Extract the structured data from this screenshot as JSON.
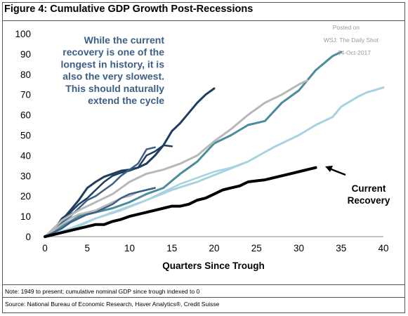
{
  "figure": {
    "title": "Figure 4: Cumulative GDP Growth Post-Recessions",
    "note": "Note: 1949 to present; cumulative nominal GDP since trough indexed to 0",
    "source": "Source: National Bureau of Economic Research, Haver Analytics®, Credit Suisse",
    "watermark": [
      "Posted on",
      "WSJ: The Daily Shot",
      "24-Oct-2017"
    ],
    "annotation_lines": [
      "While the current",
      "recovery is one of the",
      "longest in history, it is",
      "also the very slowest.",
      "This should naturally",
      "extend the cycle"
    ],
    "current_label_lines": [
      "Current",
      "Recovery"
    ]
  },
  "colors": {
    "navy": "#1f3d5e",
    "slate": "#3c5f86",
    "teal": "#4b8c9a",
    "light_blue": "#a8d2df",
    "gray": "#b8b8b8",
    "current": "#000000",
    "annotation": "#3c5f86"
  },
  "chart_data": {
    "type": "line",
    "title": "Figure 4: Cumulative GDP Growth Post-Recessions",
    "xlabel": "Quarters Since Trough",
    "ylabel": "",
    "xlim": [
      0,
      40
    ],
    "ylim": [
      0,
      100
    ],
    "xticks": [
      "0",
      "5",
      "10",
      "15",
      "20",
      "25",
      "30",
      "35",
      "40"
    ],
    "yticks": [
      "0",
      "10",
      "20",
      "30",
      "40",
      "50",
      "60",
      "70",
      "80",
      "90",
      "100"
    ],
    "grid": false,
    "legend": "none",
    "series": [
      {
        "color_key": "navy",
        "width": 3,
        "x": [
          0,
          1,
          2,
          3,
          4,
          5,
          6,
          7,
          8,
          9,
          10,
          11,
          12,
          13,
          14,
          15,
          16,
          17,
          18,
          19,
          20
        ],
        "y": [
          0,
          3,
          8,
          13,
          18,
          24,
          27,
          29.5,
          31,
          32.5,
          33,
          34,
          36,
          40,
          45,
          52,
          56,
          61,
          66,
          70,
          73
        ]
      },
      {
        "color_key": "navy",
        "width": 2.5,
        "x": [
          0,
          1,
          2,
          3,
          4,
          5,
          6,
          7,
          8,
          9,
          10,
          11,
          12,
          13,
          14,
          15
        ],
        "y": [
          0,
          3,
          9,
          12,
          16,
          19,
          23,
          27,
          30,
          31.5,
          32.5,
          34,
          40,
          42,
          45,
          44.5
        ]
      },
      {
        "color_key": "slate",
        "width": 2.5,
        "x": [
          0,
          1,
          2,
          3,
          4,
          5,
          6,
          7,
          8,
          9,
          10,
          11,
          12,
          13
        ],
        "y": [
          0,
          3,
          7,
          10,
          14,
          18,
          20,
          23,
          26,
          30,
          33,
          36,
          43,
          44
        ]
      },
      {
        "color_key": "slate",
        "width": 2.5,
        "x": [
          0,
          1,
          2,
          3,
          4
        ],
        "y": [
          0,
          4,
          8,
          11,
          13
        ]
      },
      {
        "color_key": "teal",
        "width": 3,
        "x": [
          0,
          2,
          4,
          6,
          8,
          10,
          12,
          14,
          16,
          18,
          20,
          22,
          24,
          26,
          28,
          30,
          32,
          34,
          35
        ],
        "y": [
          0,
          5,
          10,
          12,
          14,
          17,
          21,
          24,
          31,
          37,
          46,
          50,
          55,
          57,
          66,
          72,
          82,
          89,
          91
        ]
      },
      {
        "color_key": "gray",
        "width": 3,
        "x": [
          0,
          2,
          4,
          6,
          8,
          10,
          12,
          14,
          16,
          18,
          20,
          22,
          24,
          26,
          28,
          30,
          31
        ],
        "y": [
          0,
          8,
          13,
          17,
          21,
          27,
          31,
          33,
          36,
          40,
          47,
          53,
          60,
          66,
          70,
          75,
          77
        ]
      },
      {
        "color_key": "gray",
        "width": 2.5,
        "x": [
          0,
          1,
          2,
          3,
          4,
          5,
          6,
          7,
          8,
          9,
          10,
          11,
          12,
          13
        ],
        "y": [
          0,
          3,
          6,
          9,
          11,
          12,
          13,
          15,
          17,
          19,
          20,
          22,
          23,
          24
        ]
      },
      {
        "color_key": "light_blue",
        "width": 3,
        "x": [
          0,
          3,
          6,
          9,
          12,
          15,
          18,
          21,
          24,
          27,
          30,
          32,
          34,
          35,
          37,
          38,
          40
        ],
        "y": [
          0,
          4,
          9,
          13,
          18,
          23,
          27,
          32,
          37,
          44,
          50,
          55,
          59,
          64,
          69,
          71,
          73.5
        ]
      },
      {
        "color_key": "light_blue",
        "width": 2.5,
        "x": [
          0,
          2,
          4,
          6,
          8,
          10,
          12,
          14,
          16,
          18,
          20,
          22,
          24
        ],
        "y": [
          0,
          2,
          5,
          9,
          12,
          15,
          18,
          22,
          26,
          29,
          32,
          34,
          37
        ]
      },
      {
        "color_key": "slate",
        "width": 2.5,
        "x": [
          0,
          1,
          2,
          3,
          4,
          5,
          6,
          7,
          8,
          9,
          10,
          11,
          12,
          13
        ],
        "y": [
          0,
          2,
          4,
          7,
          9,
          11,
          12,
          14,
          16,
          19,
          21,
          22,
          23,
          24
        ]
      },
      {
        "name": "Current Recovery",
        "color_key": "current",
        "width": 4,
        "x": [
          0,
          2,
          4,
          6,
          7,
          8,
          9,
          10,
          11,
          12,
          13,
          14,
          15,
          16,
          17,
          18,
          19,
          20,
          21,
          22,
          23,
          24,
          25,
          26,
          27,
          28,
          29,
          30,
          31,
          32
        ],
        "y": [
          0,
          2,
          4,
          6,
          6,
          7.5,
          8.5,
          10,
          11,
          12,
          13,
          14,
          15,
          15,
          16,
          18,
          19,
          21,
          23,
          24,
          25,
          27,
          27.5,
          28,
          29,
          30,
          31,
          32,
          33,
          34
        ]
      }
    ]
  }
}
